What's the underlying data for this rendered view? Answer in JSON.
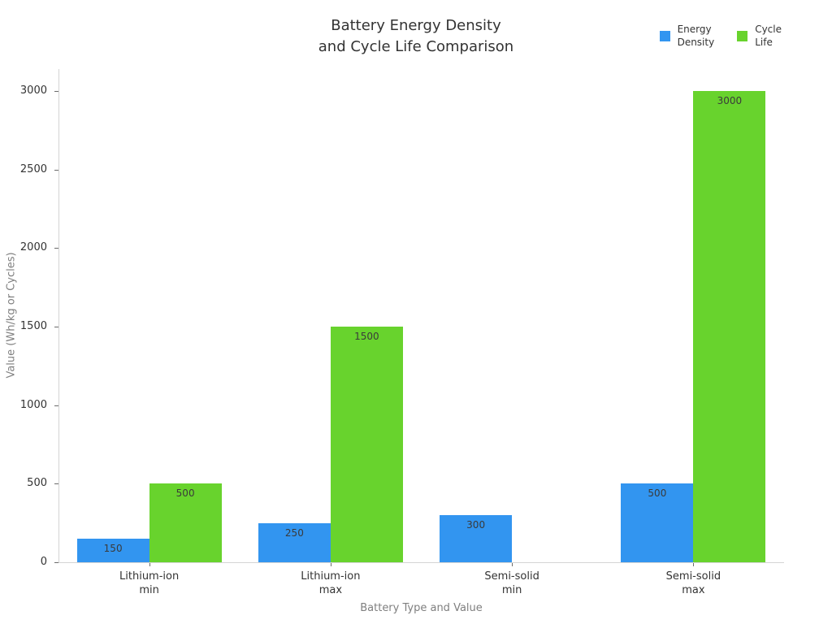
{
  "title": {
    "line1": "Battery Energy Density",
    "line2": "and Cycle Life Comparison"
  },
  "legend": {
    "items": [
      {
        "name": "Energy Density",
        "line1": "Energy",
        "line2": "Density",
        "color": "#3295f0"
      },
      {
        "name": "Cycle Life",
        "line1": "Cycle",
        "line2": "Life",
        "color": "#68d32d"
      }
    ]
  },
  "chart_data": {
    "type": "bar",
    "title": "Battery Energy Density and Cycle Life Comparison",
    "xlabel": "Battery Type and Value",
    "ylabel": "Value (Wh/kg or Cycles)",
    "categories": [
      "Lithium-ion min",
      "Lithium-ion max",
      "Semi-solid min",
      "Semi-solid max"
    ],
    "categories_lines": [
      [
        "Lithium-ion",
        "min"
      ],
      [
        "Lithium-ion",
        "max"
      ],
      [
        "Semi-solid",
        "min"
      ],
      [
        "Semi-solid",
        "max"
      ]
    ],
    "series": [
      {
        "name": "Energy Density",
        "color": "#3295f0",
        "values": [
          150,
          250,
          300,
          500
        ]
      },
      {
        "name": "Cycle Life",
        "color": "#68d32d",
        "values": [
          500,
          1500,
          null,
          3000
        ]
      }
    ],
    "ylim": [
      0,
      3000
    ],
    "yticks": [
      0,
      500,
      1000,
      1500,
      2000,
      2500,
      3000
    ],
    "grid": false,
    "legend_position": "top-right",
    "bar_value_labels_shown": true,
    "colors": {
      "bar_blue": "#3295f0",
      "bar_green": "#68d32d",
      "tick_text": "#333333",
      "axis_title_text": "#7f7f7f",
      "spine": "#d4d4d4",
      "background": "#ffffff"
    }
  }
}
